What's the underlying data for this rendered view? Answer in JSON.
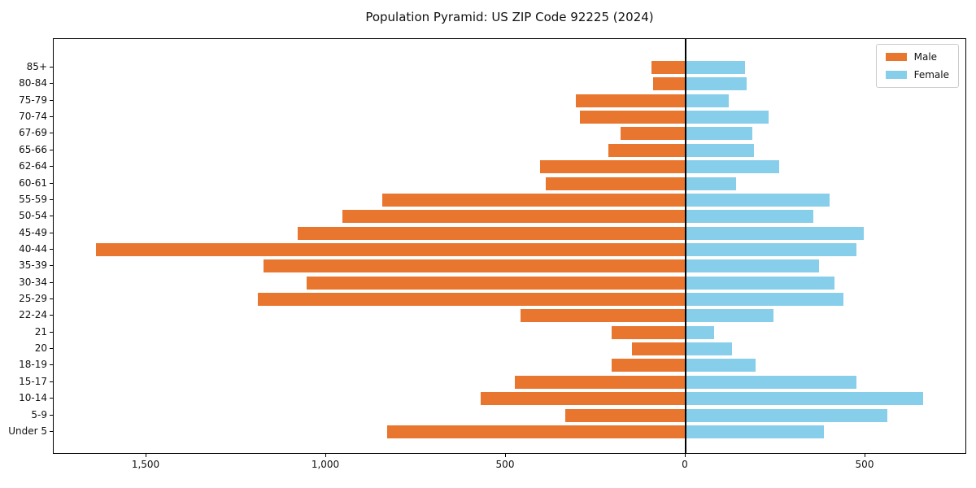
{
  "title": "Population Pyramid: US ZIP Code 92225 (2024)",
  "legend": {
    "male_label": "Male",
    "female_label": "Female"
  },
  "colors": {
    "male": "#e8762e",
    "female": "#87ceeb",
    "axis": "#000000",
    "legend_border": "#cccccc"
  },
  "chart_data": {
    "type": "bar",
    "variant": "population-pyramid-horizontal",
    "title": "Population Pyramid: US ZIP Code 92225 (2024)",
    "categories": [
      "85+",
      "80-84",
      "75-79",
      "70-74",
      "67-69",
      "65-66",
      "62-64",
      "60-61",
      "55-59",
      "50-54",
      "45-49",
      "40-44",
      "35-39",
      "30-34",
      "25-29",
      "22-24",
      "21",
      "20",
      "18-19",
      "15-17",
      "10-14",
      "5-9",
      "Under 5"
    ],
    "categories_order": "top-to-bottom",
    "series": [
      {
        "name": "Male",
        "side": "left",
        "color": "#e8762e",
        "values": [
          95,
          90,
          305,
          295,
          180,
          215,
          405,
          390,
          845,
          955,
          1080,
          1640,
          1175,
          1055,
          1190,
          460,
          205,
          150,
          205,
          475,
          570,
          335,
          830
        ]
      },
      {
        "name": "Female",
        "side": "right",
        "color": "#87ceeb",
        "values": [
          165,
          170,
          120,
          230,
          185,
          190,
          260,
          140,
          400,
          355,
          495,
          475,
          370,
          415,
          440,
          245,
          80,
          130,
          195,
          475,
          660,
          560,
          385
        ]
      }
    ],
    "x_ticks": [
      {
        "value": -1500,
        "label": "1,500"
      },
      {
        "value": -1000,
        "label": "1,000"
      },
      {
        "value": -500,
        "label": "500"
      },
      {
        "value": 0,
        "label": "0"
      },
      {
        "value": 500,
        "label": "500"
      }
    ],
    "xlim": [
      -1760,
      785
    ],
    "xlabel": "",
    "ylabel": "",
    "grid": false,
    "zero_axis_line": true,
    "legend_position": "upper right"
  }
}
